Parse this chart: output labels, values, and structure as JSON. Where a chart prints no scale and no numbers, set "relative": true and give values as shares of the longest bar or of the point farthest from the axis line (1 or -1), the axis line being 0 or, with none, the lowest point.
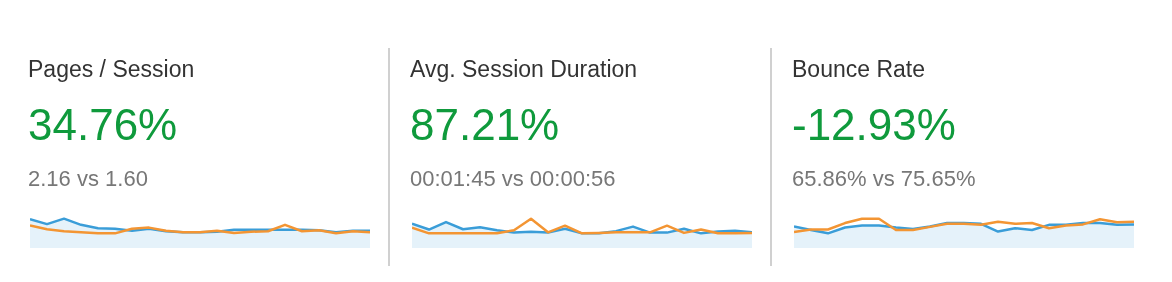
{
  "chart_data": [
    {
      "type": "area",
      "title": "Pages / Session",
      "annotations": [
        "34.76%",
        "2.16 vs 1.60"
      ],
      "relative": true,
      "legend": false,
      "categories": [
        null,
        null,
        null,
        null,
        null,
        null,
        null,
        null,
        null,
        null,
        null,
        null,
        null,
        null,
        null,
        null,
        null,
        null,
        null,
        null,
        null
      ],
      "series": [
        {
          "type": "area",
          "color": "#3a9dd8",
          "values": [
            0.97,
            0.63,
            1,
            0.58,
            0.35,
            0.31,
            0.17,
            0.31,
            0.14,
            0.07,
            0.07,
            0.11,
            0.25,
            0.25,
            0.25,
            0.25,
            0.25,
            0.21,
            0.07,
            0.17,
            0.17
          ]
        },
        {
          "type": "line",
          "color": "#f39533",
          "values": [
            0.53,
            0.28,
            0.14,
            0.07,
            0,
            0,
            0.31,
            0.39,
            0.17,
            0.07,
            0.07,
            0.17,
            0.03,
            0.11,
            0.14,
            0.58,
            0.14,
            0.21,
            0,
            0.14,
            0.07
          ]
        }
      ]
    },
    {
      "type": "area",
      "title": "Avg. Session Duration",
      "annotations": [
        "87.21%",
        "00:01:45 vs 00:00:56"
      ],
      "relative": true,
      "legend": false,
      "categories": [
        null,
        null,
        null,
        null,
        null,
        null,
        null,
        null,
        null,
        null,
        null,
        null,
        null,
        null,
        null,
        null,
        null,
        null,
        null,
        null,
        null
      ],
      "series": [
        {
          "type": "area",
          "color": "#3a9dd8",
          "values": [
            0.65,
            0.26,
            0.77,
            0.28,
            0.41,
            0.21,
            0.05,
            0.1,
            0.05,
            0.31,
            0,
            0,
            0.15,
            0.46,
            0.05,
            0.05,
            0.31,
            0,
            0.13,
            0.18,
            0.07
          ]
        },
        {
          "type": "line",
          "color": "#f39533",
          "values": [
            0.38,
            0,
            0,
            0,
            0,
            0,
            0.21,
            1,
            0.07,
            0.52,
            0,
            0.03,
            0.07,
            0.07,
            0.07,
            0.52,
            0.03,
            0.26,
            0,
            0,
            0.03
          ]
        }
      ]
    },
    {
      "type": "area",
      "title": "Bounce Rate",
      "annotations": [
        "-12.93%",
        "65.86% vs 75.65%"
      ],
      "relative": true,
      "legend": false,
      "categories": [
        null,
        null,
        null,
        null,
        null,
        null,
        null,
        null,
        null,
        null,
        null,
        null,
        null,
        null,
        null,
        null,
        null,
        null,
        null,
        null,
        null
      ],
      "series": [
        {
          "type": "area",
          "color": "#3a9dd8",
          "values": [
            0.47,
            0.23,
            0,
            0.4,
            0.53,
            0.53,
            0.4,
            0.3,
            0.47,
            0.7,
            0.7,
            0.65,
            0.12,
            0.35,
            0.23,
            0.58,
            0.58,
            0.7,
            0.7,
            0.58,
            0.61
          ]
        },
        {
          "type": "line",
          "color": "#f39533",
          "values": [
            0.09,
            0.26,
            0.26,
            0.7,
            1,
            1,
            0.23,
            0.23,
            0.44,
            0.65,
            0.65,
            0.58,
            0.79,
            0.65,
            0.7,
            0.35,
            0.53,
            0.61,
            0.96,
            0.75,
            0.79
          ]
        }
      ]
    }
  ]
}
